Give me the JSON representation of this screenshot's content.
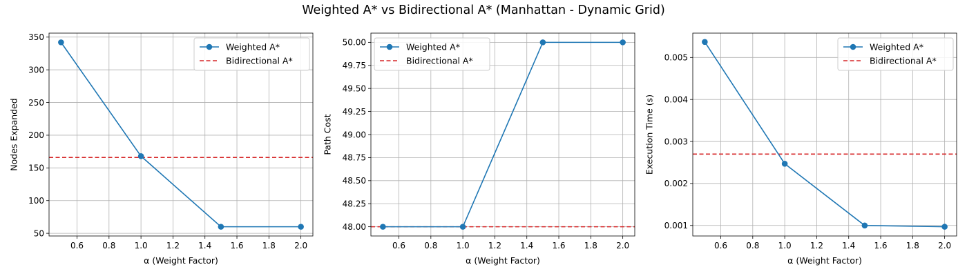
{
  "figure": {
    "title": "Weighted A* vs Bidirectional A* (Manhattan - Dynamic Grid)",
    "colors": {
      "weighted": "#1f77b4",
      "bidirectional": "#d62728",
      "grid": "#b0b0b0"
    }
  },
  "chart_data": [
    {
      "type": "line",
      "x": [
        0.5,
        1.0,
        1.5,
        2.0
      ],
      "series": [
        {
          "name": "Weighted A*",
          "values": [
            342,
            168,
            60,
            60
          ],
          "style": "solid-marker"
        },
        {
          "name": "Bidirectional A*",
          "hline": 166,
          "style": "dashed"
        }
      ],
      "xlabel": "α (Weight Factor)",
      "ylabel": "Nodes Expanded",
      "xlim": [
        0.425,
        2.075
      ],
      "ylim": [
        45.9,
        356.1
      ],
      "xticks": [
        0.6,
        0.8,
        1.0,
        1.2,
        1.4,
        1.6,
        1.8,
        2.0
      ],
      "xtick_labels": [
        "0.6",
        "0.8",
        "1.0",
        "1.2",
        "1.4",
        "1.6",
        "1.8",
        "2.0"
      ],
      "yticks": [
        50,
        100,
        150,
        200,
        250,
        300,
        350
      ],
      "ytick_labels": [
        "50",
        "100",
        "150",
        "200",
        "250",
        "300",
        "350"
      ],
      "grid": true,
      "legend": "upper right"
    },
    {
      "type": "line",
      "x": [
        0.5,
        1.0,
        1.5,
        2.0
      ],
      "series": [
        {
          "name": "Weighted A*",
          "values": [
            48.0,
            48.0,
            50.0,
            50.0
          ],
          "style": "solid-marker"
        },
        {
          "name": "Bidirectional A*",
          "hline": 48.0,
          "style": "dashed"
        }
      ],
      "xlabel": "α (Weight Factor)",
      "ylabel": "Path Cost",
      "xlim": [
        0.425,
        2.075
      ],
      "ylim": [
        47.9,
        50.1
      ],
      "xticks": [
        0.6,
        0.8,
        1.0,
        1.2,
        1.4,
        1.6,
        1.8,
        2.0
      ],
      "xtick_labels": [
        "0.6",
        "0.8",
        "1.0",
        "1.2",
        "1.4",
        "1.6",
        "1.8",
        "2.0"
      ],
      "yticks": [
        48.0,
        48.25,
        48.5,
        48.75,
        49.0,
        49.25,
        49.5,
        49.75,
        50.0
      ],
      "ytick_labels": [
        "48.00",
        "48.25",
        "48.50",
        "48.75",
        "49.00",
        "49.25",
        "49.50",
        "49.75",
        "50.00"
      ],
      "grid": true,
      "legend": "upper left"
    },
    {
      "type": "line",
      "x": [
        0.5,
        1.0,
        1.5,
        2.0
      ],
      "series": [
        {
          "name": "Weighted A*",
          "values": [
            0.00537,
            0.00247,
            0.001,
            0.00097
          ],
          "style": "solid-marker"
        },
        {
          "name": "Bidirectional A*",
          "hline": 0.0027,
          "style": "dashed"
        }
      ],
      "xlabel": "α (Weight Factor)",
      "ylabel": "Execution Time (s)",
      "xlim": [
        0.425,
        2.075
      ],
      "ylim": [
        0.00075,
        0.00558
      ],
      "xticks": [
        0.6,
        0.8,
        1.0,
        1.2,
        1.4,
        1.6,
        1.8,
        2.0
      ],
      "xtick_labels": [
        "0.6",
        "0.8",
        "1.0",
        "1.2",
        "1.4",
        "1.6",
        "1.8",
        "2.0"
      ],
      "yticks": [
        0.001,
        0.002,
        0.003,
        0.004,
        0.005
      ],
      "ytick_labels": [
        "0.001",
        "0.002",
        "0.003",
        "0.004",
        "0.005"
      ],
      "grid": true,
      "legend": "upper right"
    }
  ]
}
